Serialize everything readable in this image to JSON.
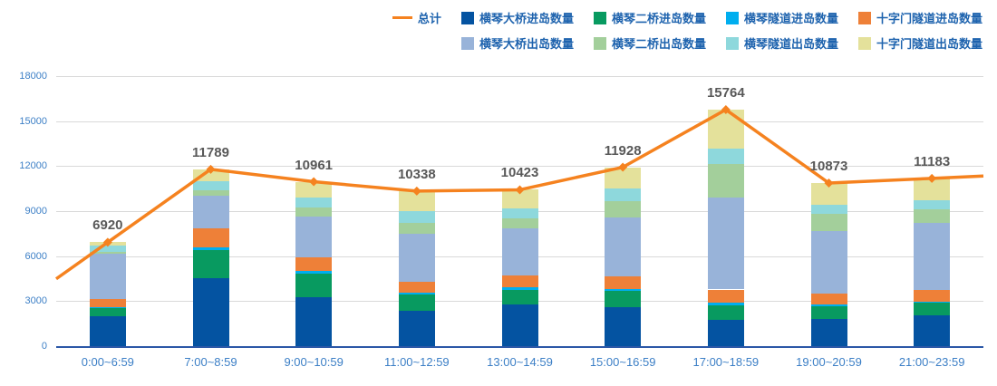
{
  "chart_data": {
    "type": "bar",
    "subtype": "stacked-bars-with-total-line",
    "title": "",
    "xlabel": "",
    "ylabel": "",
    "categories": [
      "0:00~6:59",
      "7:00~8:59",
      "9:00~10:59",
      "11:00~12:59",
      "13:00~14:59",
      "15:00~16:59",
      "17:00~18:59",
      "19:00~20:59",
      "21:00~23:59"
    ],
    "series": [
      {
        "name": "横琴大桥进岛数量",
        "color": "#0453A1",
        "values": [
          1970,
          4520,
          3290,
          2370,
          2755,
          2575,
          1775,
          1835,
          2035
        ]
      },
      {
        "name": "横琴二桥进岛数量",
        "color": "#089A60",
        "values": [
          590,
          1890,
          1555,
          1090,
          960,
          1115,
          920,
          820,
          875
        ]
      },
      {
        "name": "横琴隧道进岛数量",
        "color": "#00AEEF",
        "values": [
          60,
          160,
          160,
          120,
          200,
          140,
          205,
          100,
          60
        ]
      },
      {
        "name": "十字门隧道进岛数量",
        "color": "#EE8038",
        "values": [
          500,
          1305,
          890,
          710,
          815,
          850,
          875,
          740,
          750
        ]
      },
      {
        "name": "横琴大桥出岛数量",
        "color": "#98B3D9",
        "values": [
          3035,
          2150,
          2745,
          3210,
          3115,
          3905,
          6160,
          4150,
          4475
        ]
      },
      {
        "name": "横琴二桥出岛数量",
        "color": "#A3CF9B",
        "values": [
          100,
          360,
          585,
          725,
          690,
          1050,
          2205,
          1180,
          955
        ]
      },
      {
        "name": "横琴隧道出岛数量",
        "color": "#8ED8DC",
        "values": [
          470,
          600,
          665,
          765,
          670,
          870,
          1020,
          600,
          570
        ]
      },
      {
        "name": "十字门隧道出岛数量",
        "color": "#E4E19B",
        "values": [
          195,
          804,
          1071,
          1348,
          1218,
          1423,
          2604,
          1448,
          1463
        ]
      }
    ],
    "total_line": {
      "name": "总计",
      "color": "#F5821F",
      "values": [
        6920,
        11789,
        10961,
        10338,
        10423,
        11928,
        15764,
        10873,
        11183
      ]
    },
    "yticks": [
      0,
      3000,
      6000,
      9000,
      12000,
      15000,
      18000
    ],
    "ylim": [
      0,
      18000
    ],
    "grid": true,
    "legend_position": "top-right",
    "colors": {
      "axis_line": "#2B57A7",
      "grid_line": "#D9D9D9",
      "axis_label": "#3C7FC6",
      "legend_label": "#1E63AE",
      "total_label": "#595959"
    }
  }
}
